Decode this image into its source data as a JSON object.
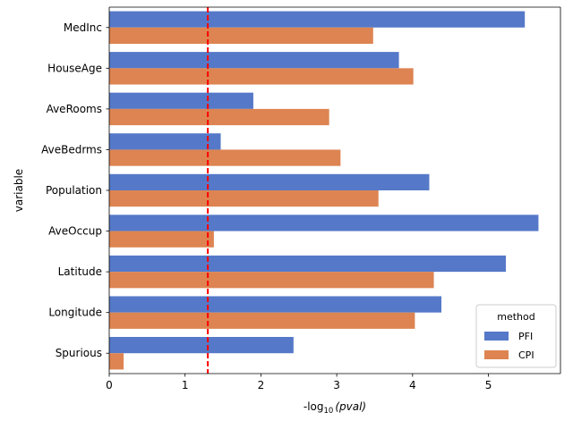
{
  "chart_data": {
    "type": "bar",
    "orientation": "horizontal",
    "categories": [
      "MedInc",
      "HouseAge",
      "AveRooms",
      "AveBedrms",
      "Population",
      "AveOccup",
      "Latitude",
      "Longitude",
      "Spurious"
    ],
    "series": [
      {
        "name": "PFI",
        "color": "#5579c8",
        "values": [
          5.48,
          3.82,
          1.9,
          1.47,
          4.22,
          5.66,
          5.23,
          4.38,
          2.43
        ]
      },
      {
        "name": "CPI",
        "color": "#dd8452",
        "values": [
          3.48,
          4.01,
          2.9,
          3.05,
          3.55,
          1.38,
          4.28,
          4.03,
          0.19
        ]
      }
    ],
    "xlabel_prefix": "-log",
    "xlabel_sub": "10",
    "xlabel_suffix": "(pval)",
    "ylabel": "variable",
    "xlim": [
      0,
      5.95
    ],
    "xticks": [
      0,
      1,
      2,
      3,
      4,
      5
    ],
    "threshold": {
      "value": 1.3,
      "color": "#ff0000",
      "style": "dashed"
    },
    "legend": {
      "title": "method",
      "placement": "lower-right"
    },
    "grid": false
  }
}
